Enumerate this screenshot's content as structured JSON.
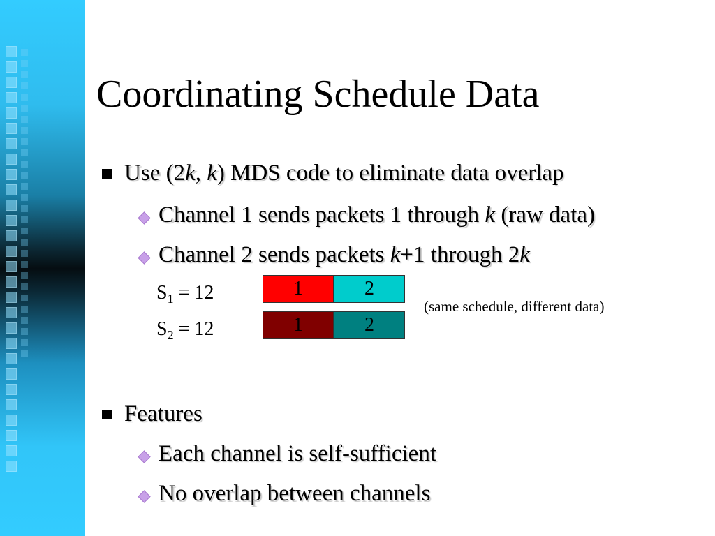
{
  "title": "Coordinating Schedule Data",
  "bullets": {
    "b1": {
      "pre": "Use (2",
      "k1": "k",
      "mid": ", ",
      "k2": "k",
      "post": ") MDS code to eliminate data overlap"
    },
    "b1_1": {
      "pre": "Channel 1 sends packets 1 through ",
      "k": "k",
      "post": " (raw data)"
    },
    "b1_2": {
      "pre": "Channel 2 sends packets ",
      "k1": "k",
      "mid": "+1 through 2",
      "k2": "k"
    },
    "b2": {
      "text": "Features"
    },
    "b2_1": {
      "text": "Each channel is self-sufficient"
    },
    "b2_2": {
      "text": "No overlap between channels"
    }
  },
  "schedule": {
    "s1": {
      "name": "S",
      "sub": "1",
      "value": " = 12"
    },
    "s2": {
      "name": "S",
      "sub": "2",
      "value": " = 12"
    },
    "row1": {
      "a": "1",
      "b": "2"
    },
    "row2": {
      "a": "1",
      "b": "2"
    },
    "note": "(same schedule, different data)"
  },
  "colors": {
    "row1_a": "#ff0000",
    "row1_b": "#00cccc",
    "row2_a": "#800000",
    "row2_b": "#008080",
    "band": "#33ccff",
    "sub_bullet": "#c8a0e8"
  }
}
